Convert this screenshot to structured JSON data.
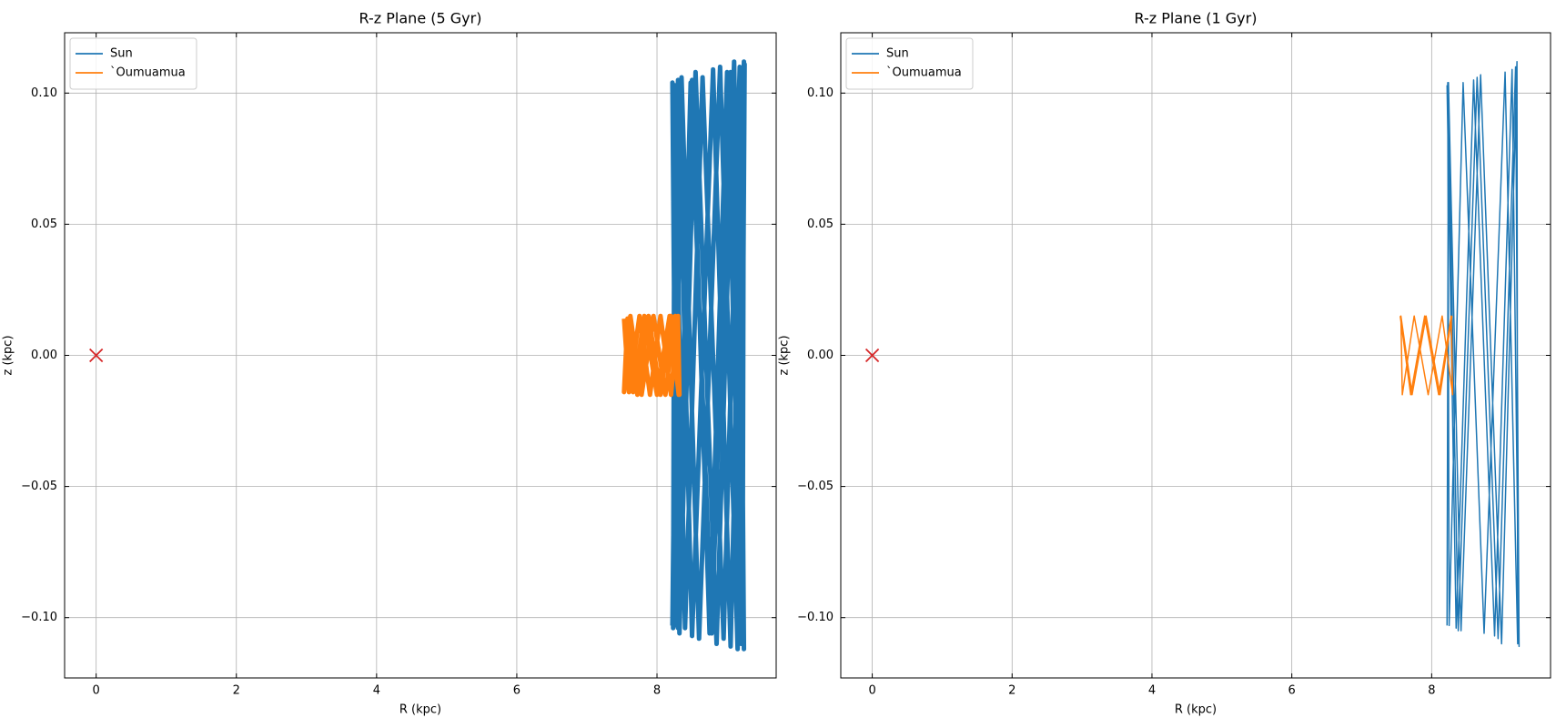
{
  "chart_data": [
    {
      "type": "line",
      "title": "R-z Plane (5 Gyr)",
      "x_label": "R (kpc)",
      "y_label": "z (kpc)",
      "xlim": [
        -0.45,
        9.7
      ],
      "ylim": [
        -0.123,
        0.123
      ],
      "xticks": [
        0,
        2,
        4,
        6,
        8
      ],
      "yticks": [
        {
          "value": -0.1,
          "label": "−0.10"
        },
        {
          "value": -0.05,
          "label": "−0.05"
        },
        {
          "value": 0,
          "label": "0.00"
        },
        {
          "value": 0.05,
          "label": "0.05"
        },
        {
          "value": 0.1,
          "label": "0.10"
        }
      ],
      "grid": true,
      "legend": "upper left",
      "line_width": 5,
      "series": [
        {
          "name": "Sun",
          "color": "#1f77b4",
          "x": [
            8.22,
            8.3,
            8.5,
            8.75,
            9.0,
            9.2,
            9.25,
            9.15,
            8.9,
            8.6,
            8.35,
            8.23,
            8.25,
            8.4,
            8.65,
            8.95,
            9.18,
            9.24,
            9.1,
            8.85,
            8.55,
            8.32,
            8.22,
            8.28,
            8.48,
            8.78,
            9.05,
            9.22,
            9.24,
            9.05,
            8.8,
            8.5,
            8.3,
            8.22
          ],
          "values": [
            0.103,
            -0.104,
            0.105,
            -0.106,
            0.108,
            -0.11,
            0.111,
            -0.112,
            0.11,
            -0.108,
            0.106,
            -0.104,
            0.103,
            -0.104,
            0.106,
            -0.108,
            0.11,
            -0.112,
            0.112,
            -0.11,
            0.108,
            -0.106,
            0.104,
            -0.103,
            0.104,
            -0.106,
            0.108,
            -0.11,
            0.112,
            -0.111,
            0.109,
            -0.107,
            0.105,
            -0.103
          ]
        },
        {
          "name": "`Oumuamua",
          "color": "#ff7f0e",
          "x": [
            7.53,
            7.6,
            7.75,
            7.9,
            8.05,
            8.2,
            8.3,
            8.32,
            8.2,
            8.05,
            7.88,
            7.72,
            7.58,
            7.53,
            7.62,
            7.78,
            7.95,
            8.12,
            8.26,
            8.31,
            8.18,
            8.0,
            7.82,
            7.66,
            7.54
          ],
          "values": [
            0.014,
            -0.014,
            0.015,
            -0.015,
            0.015,
            -0.015,
            0.015,
            -0.015,
            0.015,
            -0.015,
            0.015,
            -0.015,
            0.014,
            -0.014,
            0.015,
            -0.015,
            0.015,
            -0.015,
            0.015,
            -0.015,
            0.015,
            -0.015,
            0.015,
            -0.014,
            0.014
          ]
        }
      ],
      "markers": [
        {
          "x": 0,
          "y": 0,
          "color": "#d62728"
        }
      ]
    },
    {
      "type": "line",
      "title": "R-z Plane (1 Gyr)",
      "x_label": "R (kpc)",
      "y_label": "z (kpc)",
      "xlim": [
        -0.45,
        9.7
      ],
      "ylim": [
        -0.123,
        0.123
      ],
      "xticks": [
        0,
        2,
        4,
        6,
        8
      ],
      "yticks": [
        {
          "value": -0.1,
          "label": "−0.10"
        },
        {
          "value": -0.05,
          "label": "−0.05"
        },
        {
          "value": 0,
          "label": "0.00"
        },
        {
          "value": 0.05,
          "label": "0.05"
        },
        {
          "value": 0.1,
          "label": "0.10"
        }
      ],
      "grid": true,
      "legend": "upper left",
      "line_width": 1.5,
      "series": [
        {
          "name": "Sun",
          "color": "#1f77b4",
          "x": [
            8.22,
            8.35,
            8.6,
            8.9,
            9.15,
            9.25,
            9.2,
            8.95,
            8.65,
            8.38,
            8.23,
            8.25,
            8.45,
            8.75,
            9.05,
            9.23,
            9.22,
            9.0,
            8.7,
            8.42,
            8.24,
            8.22
          ],
          "values": [
            0.103,
            -0.104,
            0.105,
            -0.107,
            0.109,
            -0.111,
            0.11,
            -0.108,
            0.106,
            -0.105,
            0.104,
            -0.103,
            0.104,
            -0.106,
            0.108,
            -0.11,
            0.112,
            -0.11,
            0.107,
            -0.105,
            0.104,
            -0.103
          ]
        },
        {
          "name": "`Oumuamua",
          "color": "#ff7f0e",
          "x": [
            7.55,
            7.7,
            7.9,
            8.1,
            8.28,
            8.3,
            8.15,
            7.95,
            7.75,
            7.58,
            7.56,
            7.72,
            7.92,
            8.12,
            8.29
          ],
          "values": [
            0.015,
            -0.015,
            0.015,
            -0.015,
            0.015,
            -0.015,
            0.015,
            -0.015,
            0.015,
            -0.015,
            0.015,
            -0.015,
            0.015,
            -0.015,
            0.015
          ]
        }
      ],
      "markers": [
        {
          "x": 0,
          "y": 0,
          "color": "#d62728"
        }
      ]
    }
  ]
}
